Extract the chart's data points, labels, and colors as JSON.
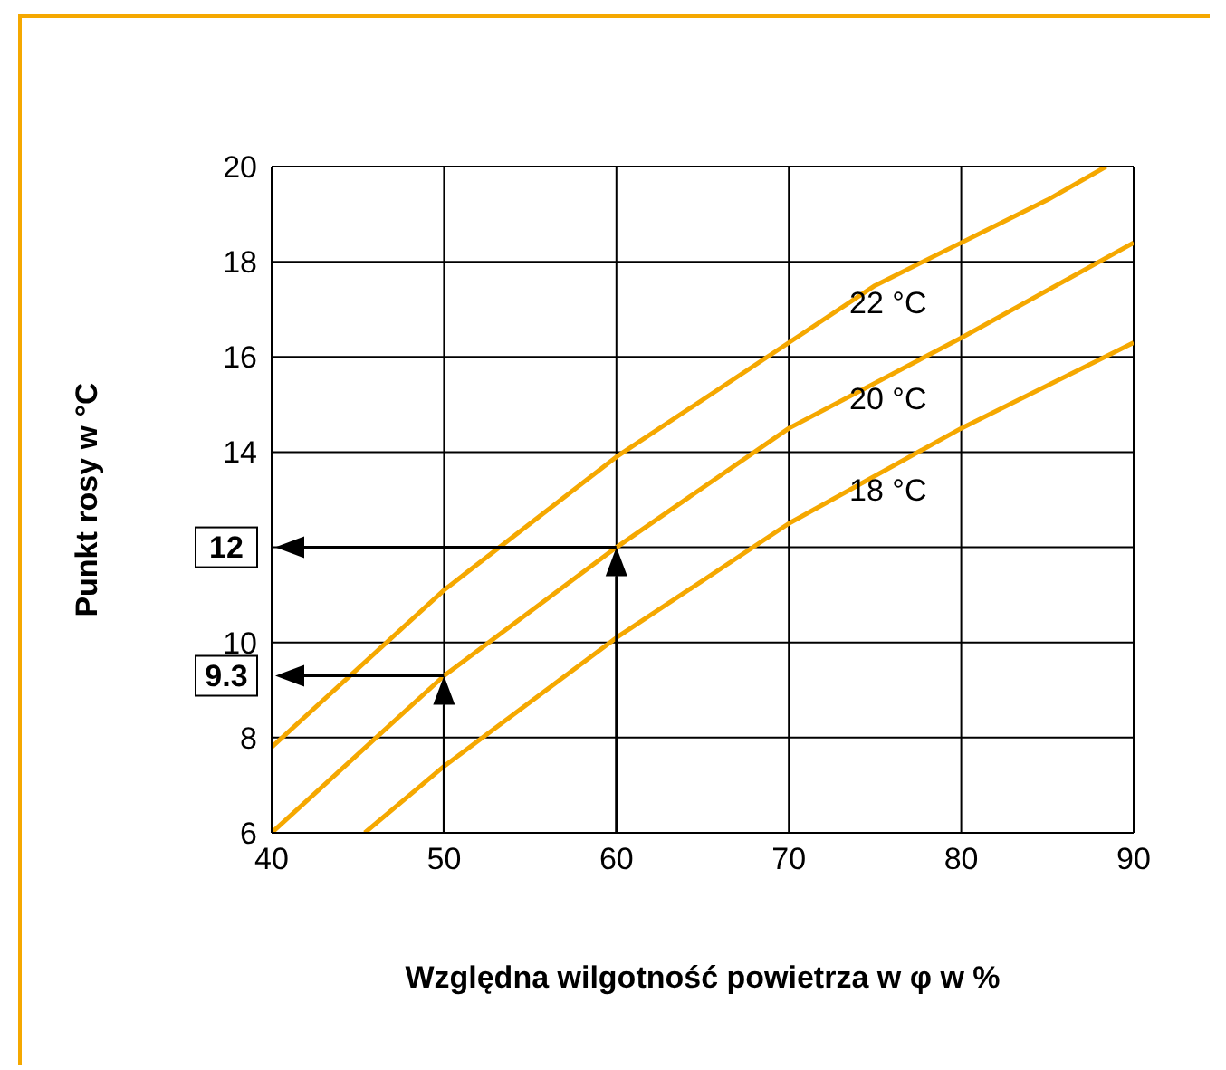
{
  "chart_data": {
    "type": "line",
    "xlabel": "Względna wilgotność powietrza w φ w %",
    "ylabel": "Punkt rosy w °C",
    "xlim": [
      40,
      90
    ],
    "xticks": [
      40,
      50,
      60,
      70,
      80,
      90
    ],
    "ylim": [
      6,
      20
    ],
    "yticks": [
      6,
      8,
      10,
      {
        "value": 12,
        "label": null
      },
      14,
      16,
      18,
      20
    ],
    "grid": true,
    "marker": "none",
    "line_style": "solid",
    "series": [
      {
        "name": "22 °C",
        "color": "#f5a800",
        "x": [
          40,
          50,
          60,
          70,
          75,
          80,
          85,
          88.4
        ],
        "values": [
          7.8,
          11.1,
          13.9,
          16.3,
          17.5,
          18.4,
          19.3,
          20
        ]
      },
      {
        "name": "20 °C",
        "color": "#f5a800",
        "x": [
          40,
          50,
          60,
          70,
          80,
          90
        ],
        "values": [
          6,
          9.3,
          12,
          14.5,
          16.4,
          18.4
        ]
      },
      {
        "name": "18 °C",
        "color": "#f5a800",
        "x": [
          45.4,
          50,
          60,
          70,
          80,
          90
        ],
        "values": [
          6,
          7.4,
          10.1,
          12.5,
          14.5,
          16.3
        ]
      }
    ],
    "annotations": [
      "12",
      "9.3"
    ]
  }
}
